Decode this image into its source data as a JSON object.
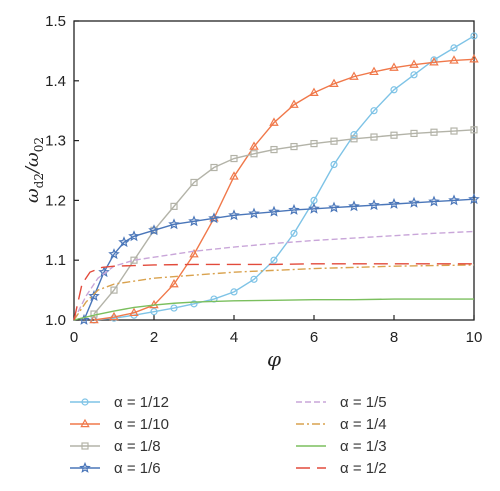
{
  "chart_data": {
    "type": "line",
    "title": "",
    "xlabel": "φ",
    "ylabel_main": "ω",
    "ylabel_main_sub": "d2",
    "ylabel_den": "ω",
    "ylabel_den_sub": "02",
    "xlim": [
      0,
      10
    ],
    "ylim": [
      1.0,
      1.5
    ],
    "xticks": [
      "0",
      "2",
      "4",
      "6",
      "8",
      "10"
    ],
    "yticks": [
      "1.0",
      "1.1",
      "1.2",
      "1.3",
      "1.4",
      "1.5"
    ],
    "legend_position": "bottom",
    "series": [
      {
        "name": "α = 1/12",
        "color": "#7ec3e6",
        "dash": "",
        "marker": "circle",
        "x": [
          0.5,
          1,
          1.5,
          2,
          2.5,
          3,
          3.5,
          4,
          4.5,
          5,
          5.5,
          6,
          6.5,
          7,
          7.5,
          8,
          8.5,
          9,
          9.5,
          10
        ],
        "y": [
          1.0,
          1.003,
          1.008,
          1.014,
          1.02,
          1.027,
          1.035,
          1.047,
          1.068,
          1.1,
          1.145,
          1.2,
          1.26,
          1.31,
          1.35,
          1.385,
          1.41,
          1.435,
          1.455,
          1.475
        ]
      },
      {
        "name": "α = 1/10",
        "color": "#f0784a",
        "dash": "",
        "marker": "triangle",
        "x": [
          0.5,
          1,
          1.5,
          2,
          2.5,
          3,
          3.5,
          4,
          4.5,
          5,
          5.5,
          6,
          6.5,
          7,
          7.5,
          8,
          8.5,
          9,
          9.5,
          10
        ],
        "y": [
          1.0,
          1.005,
          1.012,
          1.025,
          1.06,
          1.11,
          1.17,
          1.24,
          1.29,
          1.33,
          1.36,
          1.38,
          1.395,
          1.407,
          1.415,
          1.422,
          1.427,
          1.431,
          1.434,
          1.436
        ]
      },
      {
        "name": "α = 1/8",
        "color": "#b3b3a8",
        "dash": "",
        "marker": "square",
        "x": [
          0.5,
          1,
          1.5,
          2,
          2.5,
          3,
          3.5,
          4,
          4.5,
          5,
          5.5,
          6,
          6.5,
          7,
          7.5,
          8,
          8.5,
          9,
          9.5,
          10
        ],
        "y": [
          1.01,
          1.05,
          1.1,
          1.15,
          1.19,
          1.23,
          1.255,
          1.27,
          1.278,
          1.285,
          1.29,
          1.295,
          1.299,
          1.303,
          1.306,
          1.309,
          1.312,
          1.314,
          1.316,
          1.318
        ]
      },
      {
        "name": "α = 1/6",
        "color": "#4a76b9",
        "dash": "",
        "marker": "star",
        "x": [
          0.25,
          0.5,
          0.75,
          1,
          1.25,
          1.5,
          2,
          2.5,
          3,
          3.5,
          4,
          4.5,
          5,
          5.5,
          6,
          6.5,
          7,
          7.5,
          8,
          8.5,
          9,
          9.5,
          10
        ],
        "y": [
          1.0,
          1.04,
          1.08,
          1.11,
          1.13,
          1.14,
          1.15,
          1.16,
          1.165,
          1.17,
          1.175,
          1.178,
          1.181,
          1.184,
          1.186,
          1.188,
          1.19,
          1.192,
          1.194,
          1.196,
          1.198,
          1.2,
          1.202
        ]
      },
      {
        "name": "α = 1/5",
        "color": "#c9a6d9",
        "dash": "6,3",
        "marker": "",
        "x": [
          0,
          0.3,
          0.6,
          1,
          1.5,
          2,
          3,
          4,
          5,
          6,
          7,
          8,
          9,
          10
        ],
        "y": [
          1.0,
          1.04,
          1.07,
          1.09,
          1.1,
          1.105,
          1.115,
          1.122,
          1.128,
          1.133,
          1.137,
          1.141,
          1.145,
          1.148
        ]
      },
      {
        "name": "α = 1/4",
        "color": "#d9a24e",
        "dash": "8,3,2,3",
        "marker": "",
        "x": [
          0,
          0.3,
          0.6,
          1,
          1.5,
          2,
          3,
          4,
          5,
          6,
          7,
          8,
          9,
          10
        ],
        "y": [
          1.0,
          1.03,
          1.05,
          1.06,
          1.065,
          1.07,
          1.075,
          1.08,
          1.083,
          1.086,
          1.088,
          1.09,
          1.091,
          1.092
        ]
      },
      {
        "name": "α = 1/3",
        "color": "#7bbf5e",
        "dash": "",
        "marker": "",
        "x": [
          0,
          0.5,
          1,
          1.5,
          2,
          2.5,
          3,
          4,
          5,
          6,
          7,
          8,
          9,
          10
        ],
        "y": [
          1.0,
          1.008,
          1.015,
          1.021,
          1.025,
          1.028,
          1.03,
          1.032,
          1.033,
          1.034,
          1.034,
          1.035,
          1.035,
          1.035
        ]
      },
      {
        "name": "α = 1/2",
        "color": "#e24a3b",
        "dash": "14,7",
        "marker": "",
        "x": [
          0,
          0.2,
          0.4,
          0.7,
          1,
          1.5,
          2,
          3,
          4,
          5,
          6,
          7,
          8,
          9,
          10
        ],
        "y": [
          1.0,
          1.06,
          1.08,
          1.088,
          1.09,
          1.091,
          1.092,
          1.093,
          1.093,
          1.093,
          1.094,
          1.094,
          1.094,
          1.094,
          1.094
        ]
      }
    ]
  }
}
